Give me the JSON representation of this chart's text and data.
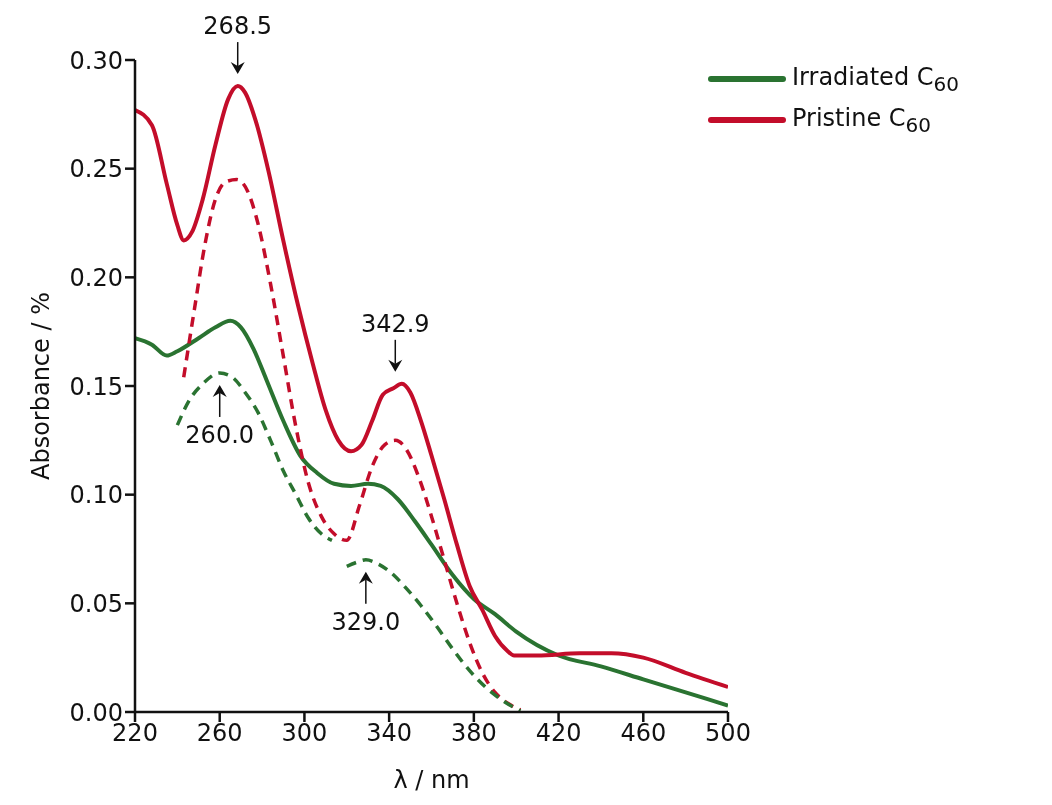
{
  "chart_data": {
    "type": "line",
    "xlabel": "λ / nm",
    "ylabel": "Absorbance / %",
    "xlim": [
      220,
      500
    ],
    "xticks": [
      220,
      260,
      300,
      340,
      380,
      420,
      460,
      500
    ],
    "ylim": [
      0,
      0.3
    ],
    "yticks": [
      {
        "value": 0,
        "label": "0.00"
      },
      {
        "value": 0.05,
        "label": "0.05"
      },
      {
        "value": 0.1,
        "label": "0.10"
      },
      {
        "value": 0.15,
        "label": "0.15"
      },
      {
        "value": 0.2,
        "label": "0.20"
      },
      {
        "value": 0.25,
        "label": "0.25"
      },
      {
        "value": 0.3,
        "label": "0.30"
      }
    ],
    "grid": false,
    "legend": "top right",
    "marker": "none",
    "series": [
      {
        "name": "Irradiated C$_{60}$",
        "color": "#2a7331",
        "line_style": "solid",
        "x": [
          220,
          228,
          235,
          240,
          250,
          258,
          265,
          270,
          276,
          282,
          290,
          298,
          306,
          314,
          322,
          330,
          336,
          344,
          352,
          360,
          370,
          380,
          390,
          400,
          420,
          440,
          460,
          480,
          500
        ],
        "values": [
          0.172,
          0.169,
          0.164,
          0.166,
          0.172,
          0.177,
          0.18,
          0.177,
          0.167,
          0.153,
          0.134,
          0.118,
          0.11,
          0.105,
          0.104,
          0.105,
          0.104,
          0.098,
          0.088,
          0.077,
          0.063,
          0.052,
          0.045,
          0.037,
          0.026,
          0.021,
          0.015,
          0.009,
          0.003
        ]
      },
      {
        "name": "Pristine C$_{60}$",
        "color": "#c30d2a",
        "line_style": "solid",
        "x": [
          220,
          228,
          235,
          240,
          243,
          247,
          252,
          258,
          264,
          268.5,
          272,
          277,
          283,
          290,
          297,
          304,
          310,
          316,
          322,
          327,
          332,
          337,
          342,
          346,
          350,
          355,
          360,
          366,
          372,
          378,
          384,
          390,
          396,
          399,
          410,
          430,
          445,
          460,
          480,
          500
        ],
        "values": [
          0.277,
          0.27,
          0.243,
          0.224,
          0.217,
          0.221,
          0.236,
          0.261,
          0.282,
          0.288,
          0.285,
          0.272,
          0.249,
          0.217,
          0.187,
          0.16,
          0.139,
          0.125,
          0.12,
          0.123,
          0.134,
          0.146,
          0.149,
          0.151,
          0.147,
          0.134,
          0.118,
          0.098,
          0.077,
          0.058,
          0.047,
          0.035,
          0.028,
          0.026,
          0.026,
          0.027,
          0.027,
          0.025,
          0.018,
          0.0115
        ]
      },
      {
        "color": "#c30d2a",
        "line_style": "dashed",
        "x": [
          243,
          248,
          253,
          258,
          263,
          268,
          273,
          278,
          284,
          290,
          296,
          302,
          308,
          314,
          320,
          326,
          332,
          338,
          343,
          348,
          354,
          360,
          366,
          372,
          378,
          384,
          390,
          396,
          402
        ],
        "values": [
          0.154,
          0.185,
          0.215,
          0.236,
          0.244,
          0.245,
          0.24,
          0.225,
          0.197,
          0.164,
          0.131,
          0.105,
          0.09,
          0.082,
          0.079,
          0.095,
          0.113,
          0.123,
          0.125,
          0.121,
          0.108,
          0.09,
          0.07,
          0.05,
          0.032,
          0.018,
          0.009,
          0.004,
          0.001
        ]
      },
      {
        "color": "#2a7331",
        "line_style": "dashed",
        "x": [
          240,
          246,
          252,
          260,
          266,
          272,
          278,
          284,
          290,
          296,
          302,
          308,
          313,
          316,
          320,
          325,
          329,
          335,
          341,
          348,
          355,
          362,
          370,
          378,
          386,
          394,
          402
        ],
        "values": [
          0.132,
          0.144,
          0.151,
          0.156,
          0.154,
          0.147,
          0.138,
          0.125,
          0.111,
          0.1,
          0.089,
          0.082,
          0.079,
          null,
          0.067,
          0.069,
          0.07,
          0.068,
          0.064,
          0.057,
          0.049,
          0.04,
          0.029,
          0.019,
          0.011,
          0.005,
          0.0005
        ]
      }
    ],
    "annotations": [
      {
        "text": "268.5",
        "x": 268.5,
        "y": 0.288
      },
      {
        "text": "260.0",
        "x": 260,
        "y": 0.156
      },
      {
        "text": "342.9",
        "x": 342.9,
        "y": 0.151
      },
      {
        "text": "329.0",
        "x": 329,
        "y": 0.07
      }
    ]
  }
}
